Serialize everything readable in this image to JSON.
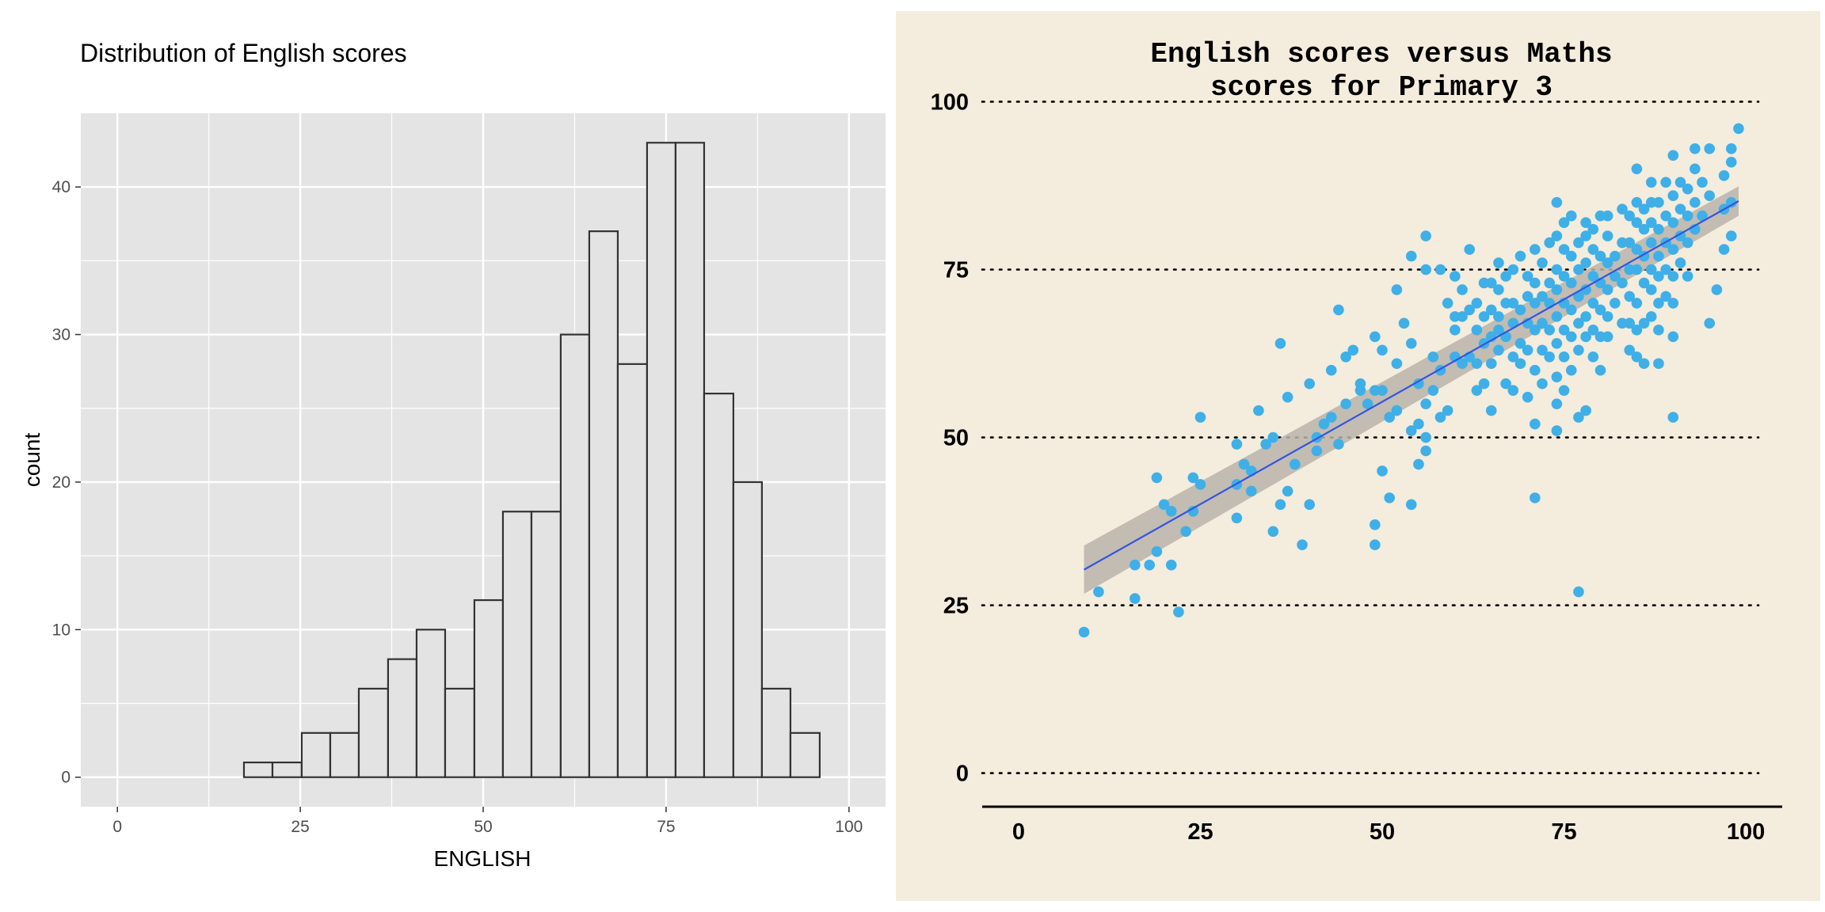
{
  "chart_data": [
    {
      "type": "bar",
      "title": "Distribution of English scores",
      "xlabel": "ENGLISH",
      "ylabel": "count",
      "xlim": [
        -5,
        105
      ],
      "ylim": [
        -2,
        45
      ],
      "xticks": [
        0,
        25,
        50,
        75,
        100
      ],
      "yticks": [
        0,
        10,
        20,
        30,
        40
      ],
      "bin_width": 3.93,
      "bins": [
        {
          "x0": 17.3,
          "x1": 21.2,
          "count": 1
        },
        {
          "x0": 21.2,
          "x1": 25.2,
          "count": 1
        },
        {
          "x0": 25.2,
          "x1": 29.1,
          "count": 3
        },
        {
          "x0": 29.1,
          "x1": 33.0,
          "count": 3
        },
        {
          "x0": 33.0,
          "x1": 37.0,
          "count": 6
        },
        {
          "x0": 37.0,
          "x1": 40.9,
          "count": 8
        },
        {
          "x0": 40.9,
          "x1": 44.8,
          "count": 10
        },
        {
          "x0": 44.8,
          "x1": 48.8,
          "count": 6
        },
        {
          "x0": 48.8,
          "x1": 52.7,
          "count": 12
        },
        {
          "x0": 52.7,
          "x1": 56.6,
          "count": 18
        },
        {
          "x0": 56.6,
          "x1": 60.6,
          "count": 18
        },
        {
          "x0": 60.6,
          "x1": 64.5,
          "count": 30
        },
        {
          "x0": 64.5,
          "x1": 68.4,
          "count": 37
        },
        {
          "x0": 68.4,
          "x1": 72.4,
          "count": 28
        },
        {
          "x0": 72.4,
          "x1": 76.3,
          "count": 43
        },
        {
          "x0": 76.3,
          "x1": 80.2,
          "count": 43
        },
        {
          "x0": 80.2,
          "x1": 84.2,
          "count": 26
        },
        {
          "x0": 84.2,
          "x1": 88.1,
          "count": 20
        },
        {
          "x0": 88.1,
          "x1": 92.0,
          "count": 6
        },
        {
          "x0": 92.0,
          "x1": 96.0,
          "count": 3
        }
      ],
      "grid": true,
      "colors": {
        "panel": "#e4e4e4",
        "grid": "#ffffff",
        "bar_fill": "#e3e3e3",
        "bar_edge": "#333333"
      }
    },
    {
      "type": "scatter",
      "title_lines": [
        "English scores versus Maths",
        "scores for Primary 3"
      ],
      "xlim": [
        -5,
        105
      ],
      "ylim": [
        -5,
        101
      ],
      "xticks": [
        0,
        25,
        50,
        75,
        100
      ],
      "yticks": [
        0,
        25,
        50,
        75,
        100
      ],
      "grid": "horizontal dotted",
      "fit": {
        "method": "linear",
        "x": [
          9,
          99
        ],
        "y": [
          30.3,
          85.2
        ],
        "band_halfwidth": [
          3.6,
          2.2
        ]
      },
      "colors": {
        "background": "#f4ecdd",
        "point": "#3fafe8",
        "line": "#3355dd",
        "band": "#b9b4aa"
      },
      "points": [
        [
          9,
          21
        ],
        [
          11,
          27
        ],
        [
          16,
          26
        ],
        [
          16,
          31
        ],
        [
          18,
          31
        ],
        [
          19,
          33
        ],
        [
          19,
          44
        ],
        [
          20,
          40
        ],
        [
          21,
          31
        ],
        [
          21,
          39
        ],
        [
          22,
          24
        ],
        [
          23,
          36
        ],
        [
          24,
          44
        ],
        [
          24,
          39
        ],
        [
          25,
          43
        ],
        [
          25,
          53
        ],
        [
          30,
          38
        ],
        [
          30,
          43
        ],
        [
          30,
          49
        ],
        [
          31,
          46
        ],
        [
          32,
          42
        ],
        [
          32,
          45
        ],
        [
          33,
          54
        ],
        [
          34,
          49
        ],
        [
          35,
          36
        ],
        [
          35,
          50
        ],
        [
          36,
          40
        ],
        [
          36,
          64
        ],
        [
          37,
          42
        ],
        [
          37,
          56
        ],
        [
          38,
          46
        ],
        [
          39,
          34
        ],
        [
          40,
          40
        ],
        [
          40,
          58
        ],
        [
          41,
          48
        ],
        [
          41,
          50
        ],
        [
          42,
          52
        ],
        [
          43,
          53
        ],
        [
          43,
          60
        ],
        [
          44,
          49
        ],
        [
          44,
          69
        ],
        [
          45,
          55
        ],
        [
          45,
          62
        ],
        [
          46,
          63
        ],
        [
          47,
          57
        ],
        [
          47,
          58
        ],
        [
          48,
          55
        ],
        [
          49,
          34
        ],
        [
          49,
          37
        ],
        [
          49,
          57
        ],
        [
          49,
          65
        ],
        [
          50,
          45
        ],
        [
          50,
          57
        ],
        [
          50,
          63
        ],
        [
          51,
          41
        ],
        [
          51,
          53
        ],
        [
          52,
          54
        ],
        [
          52,
          61
        ],
        [
          52,
          72
        ],
        [
          53,
          67
        ],
        [
          54,
          40
        ],
        [
          54,
          51
        ],
        [
          54,
          64
        ],
        [
          54,
          77
        ],
        [
          55,
          46
        ],
        [
          55,
          52
        ],
        [
          55,
          58
        ],
        [
          56,
          48
        ],
        [
          56,
          50
        ],
        [
          56,
          55
        ],
        [
          56,
          75
        ],
        [
          56,
          80
        ],
        [
          57,
          57
        ],
        [
          57,
          62
        ],
        [
          58,
          53
        ],
        [
          58,
          60
        ],
        [
          58,
          75
        ],
        [
          59,
          54
        ],
        [
          59,
          70
        ],
        [
          60,
          62
        ],
        [
          60,
          66
        ],
        [
          60,
          68
        ],
        [
          60,
          74
        ],
        [
          61,
          61
        ],
        [
          61,
          68
        ],
        [
          61,
          72
        ],
        [
          62,
          62
        ],
        [
          62,
          69
        ],
        [
          62,
          78
        ],
        [
          63,
          57
        ],
        [
          63,
          61
        ],
        [
          63,
          66
        ],
        [
          63,
          70
        ],
        [
          64,
          58
        ],
        [
          64,
          64
        ],
        [
          64,
          68
        ],
        [
          64,
          73
        ],
        [
          65,
          54
        ],
        [
          65,
          61
        ],
        [
          65,
          65
        ],
        [
          65,
          69
        ],
        [
          65,
          73
        ],
        [
          66,
          63
        ],
        [
          66,
          66
        ],
        [
          66,
          68
        ],
        [
          66,
          72
        ],
        [
          66,
          76
        ],
        [
          67,
          58
        ],
        [
          67,
          65
        ],
        [
          67,
          70
        ],
        [
          67,
          74
        ],
        [
          68,
          57
        ],
        [
          68,
          62
        ],
        [
          68,
          67
        ],
        [
          68,
          70
        ],
        [
          68,
          75
        ],
        [
          69,
          61
        ],
        [
          69,
          64
        ],
        [
          69,
          69
        ],
        [
          69,
          77
        ],
        [
          70,
          56
        ],
        [
          70,
          63
        ],
        [
          70,
          67
        ],
        [
          70,
          71
        ],
        [
          70,
          74
        ],
        [
          71,
          41
        ],
        [
          71,
          52
        ],
        [
          71,
          60
        ],
        [
          71,
          66
        ],
        [
          71,
          70
        ],
        [
          71,
          73
        ],
        [
          71,
          78
        ],
        [
          72,
          58
        ],
        [
          72,
          63
        ],
        [
          72,
          67
        ],
        [
          72,
          71
        ],
        [
          72,
          76
        ],
        [
          73,
          62
        ],
        [
          73,
          66
        ],
        [
          73,
          70
        ],
        [
          73,
          73
        ],
        [
          73,
          79
        ],
        [
          74,
          51
        ],
        [
          74,
          55
        ],
        [
          74,
          59
        ],
        [
          74,
          64
        ],
        [
          74,
          68
        ],
        [
          74,
          72
        ],
        [
          74,
          75
        ],
        [
          74,
          80
        ],
        [
          74,
          85
        ],
        [
          75,
          57
        ],
        [
          75,
          62
        ],
        [
          75,
          66
        ],
        [
          75,
          70
        ],
        [
          75,
          74
        ],
        [
          75,
          78
        ],
        [
          75,
          82
        ],
        [
          76,
          60
        ],
        [
          76,
          65
        ],
        [
          76,
          69
        ],
        [
          76,
          73
        ],
        [
          76,
          77
        ],
        [
          76,
          83
        ],
        [
          77,
          27
        ],
        [
          77,
          53
        ],
        [
          77,
          63
        ],
        [
          77,
          67
        ],
        [
          77,
          71
        ],
        [
          77,
          75
        ],
        [
          77,
          79
        ],
        [
          78,
          54
        ],
        [
          78,
          65
        ],
        [
          78,
          68
        ],
        [
          78,
          72
        ],
        [
          78,
          76
        ],
        [
          78,
          80
        ],
        [
          78,
          82
        ],
        [
          79,
          62
        ],
        [
          79,
          66
        ],
        [
          79,
          70
        ],
        [
          79,
          74
        ],
        [
          79,
          78
        ],
        [
          79,
          81
        ],
        [
          80,
          60
        ],
        [
          80,
          65
        ],
        [
          80,
          69
        ],
        [
          80,
          73
        ],
        [
          80,
          77
        ],
        [
          80,
          83
        ],
        [
          81,
          65
        ],
        [
          81,
          68
        ],
        [
          81,
          72
        ],
        [
          81,
          76
        ],
        [
          81,
          80
        ],
        [
          81,
          83
        ],
        [
          82,
          70
        ],
        [
          82,
          74
        ],
        [
          82,
          77
        ],
        [
          83,
          67
        ],
        [
          83,
          73
        ],
        [
          83,
          79
        ],
        [
          83,
          84
        ],
        [
          84,
          63
        ],
        [
          84,
          67
        ],
        [
          84,
          71
        ],
        [
          84,
          75
        ],
        [
          84,
          79
        ],
        [
          84,
          83
        ],
        [
          85,
          62
        ],
        [
          85,
          66
        ],
        [
          85,
          70
        ],
        [
          85,
          75
        ],
        [
          85,
          78
        ],
        [
          85,
          82
        ],
        [
          85,
          85
        ],
        [
          85,
          90
        ],
        [
          86,
          61
        ],
        [
          86,
          67
        ],
        [
          86,
          73
        ],
        [
          86,
          77
        ],
        [
          86,
          81
        ],
        [
          86,
          84
        ],
        [
          87,
          68
        ],
        [
          87,
          72
        ],
        [
          87,
          75
        ],
        [
          87,
          79
        ],
        [
          87,
          82
        ],
        [
          87,
          85
        ],
        [
          87,
          88
        ],
        [
          88,
          61
        ],
        [
          88,
          66
        ],
        [
          88,
          70
        ],
        [
          88,
          74
        ],
        [
          88,
          77
        ],
        [
          88,
          81
        ],
        [
          88,
          85
        ],
        [
          89,
          71
        ],
        [
          89,
          75
        ],
        [
          89,
          79
        ],
        [
          89,
          83
        ],
        [
          89,
          88
        ],
        [
          90,
          53
        ],
        [
          90,
          65
        ],
        [
          90,
          70
        ],
        [
          90,
          74
        ],
        [
          90,
          78
        ],
        [
          90,
          82
        ],
        [
          90,
          86
        ],
        [
          90,
          92
        ],
        [
          91,
          76
        ],
        [
          91,
          80
        ],
        [
          91,
          84
        ],
        [
          91,
          88
        ],
        [
          92,
          74
        ],
        [
          92,
          79
        ],
        [
          92,
          83
        ],
        [
          92,
          87
        ],
        [
          93,
          81
        ],
        [
          93,
          85
        ],
        [
          93,
          90
        ],
        [
          93,
          93
        ],
        [
          94,
          83
        ],
        [
          94,
          88
        ],
        [
          95,
          67
        ],
        [
          95,
          86
        ],
        [
          95,
          93
        ],
        [
          96,
          72
        ],
        [
          97,
          78
        ],
        [
          97,
          84
        ],
        [
          97,
          89
        ],
        [
          98,
          80
        ],
        [
          98,
          85
        ],
        [
          98,
          91
        ],
        [
          98,
          93
        ],
        [
          99,
          96
        ]
      ]
    }
  ]
}
